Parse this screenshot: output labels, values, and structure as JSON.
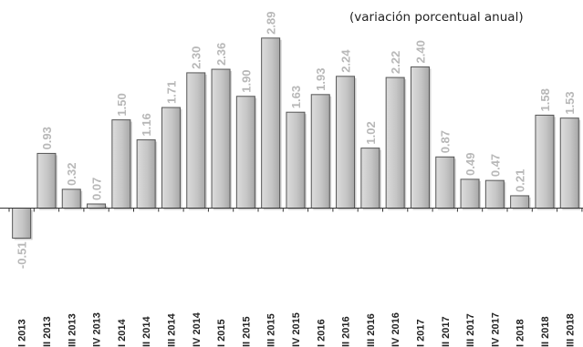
{
  "chart_data": {
    "type": "bar",
    "subtitle": "(variación porcentual anual)",
    "categories": [
      "I 2013",
      "II 2013",
      "III 2013",
      "IV 2013",
      "I 2014",
      "II 2014",
      "III 2014",
      "IV 2014",
      "I 2015",
      "II 2015",
      "III 2015",
      "IV 2015",
      "I 2016",
      "II 2016",
      "III 2016",
      "IV 2016",
      "I 2017",
      "II 2017",
      "III 2017",
      "IV 2017",
      "I 2018",
      "II 2018",
      "III 2018"
    ],
    "values": [
      -0.51,
      0.93,
      0.32,
      0.07,
      1.5,
      1.16,
      1.71,
      2.3,
      2.36,
      1.9,
      2.89,
      1.63,
      1.93,
      2.24,
      1.02,
      2.22,
      2.4,
      0.87,
      0.49,
      0.47,
      0.21,
      1.58,
      1.53
    ],
    "value_labels": [
      "-0.51",
      "0.93",
      "0.32",
      "0.07",
      "1.50",
      "1.16",
      "1.71",
      "2.30",
      "2.36",
      "1.90",
      "2.89",
      "1.63",
      "1.93",
      "2.24",
      "1.02",
      "2.22",
      "2.40",
      "0.87",
      "0.49",
      "0.47",
      "0.21",
      "1.58",
      "1.53"
    ],
    "ylim": [
      -0.55,
      3.1
    ],
    "grid": false,
    "legend": "none",
    "colors": {
      "bar_fill": "#c8c8c8",
      "bar_stroke": "#555555",
      "label": "#b8b8b8",
      "axis": "#333333",
      "text": "#222222"
    }
  }
}
